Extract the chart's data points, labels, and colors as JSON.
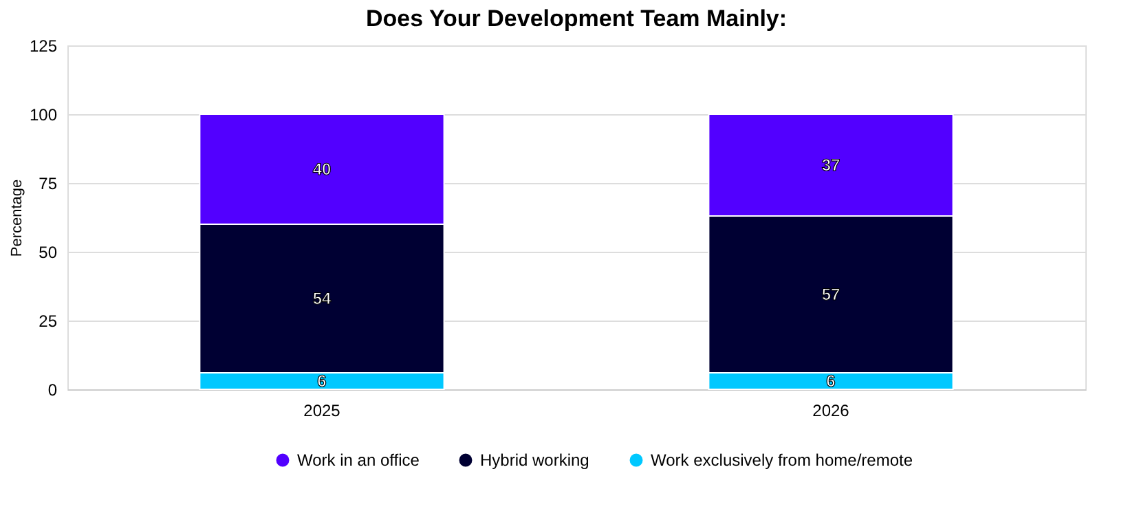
{
  "chart_data": {
    "type": "bar",
    "title": "Does Your Development Team Mainly:",
    "ylabel": "Percentage",
    "categories": [
      "2025",
      "2026"
    ],
    "stacked": true,
    "series": [
      {
        "name": "Work exclusively from home/remote",
        "color": "#00c8ff",
        "values": [
          6,
          6
        ]
      },
      {
        "name": "Hybrid working",
        "color": "#000033",
        "values": [
          54,
          57
        ]
      },
      {
        "name": "Work in an office",
        "color": "#5200ff",
        "values": [
          40,
          37
        ]
      }
    ],
    "ylim": [
      0,
      125
    ],
    "yticks": [
      0,
      25,
      50,
      75,
      100,
      125
    ],
    "grid": "y",
    "legend": "bottom",
    "data_labels": true
  }
}
